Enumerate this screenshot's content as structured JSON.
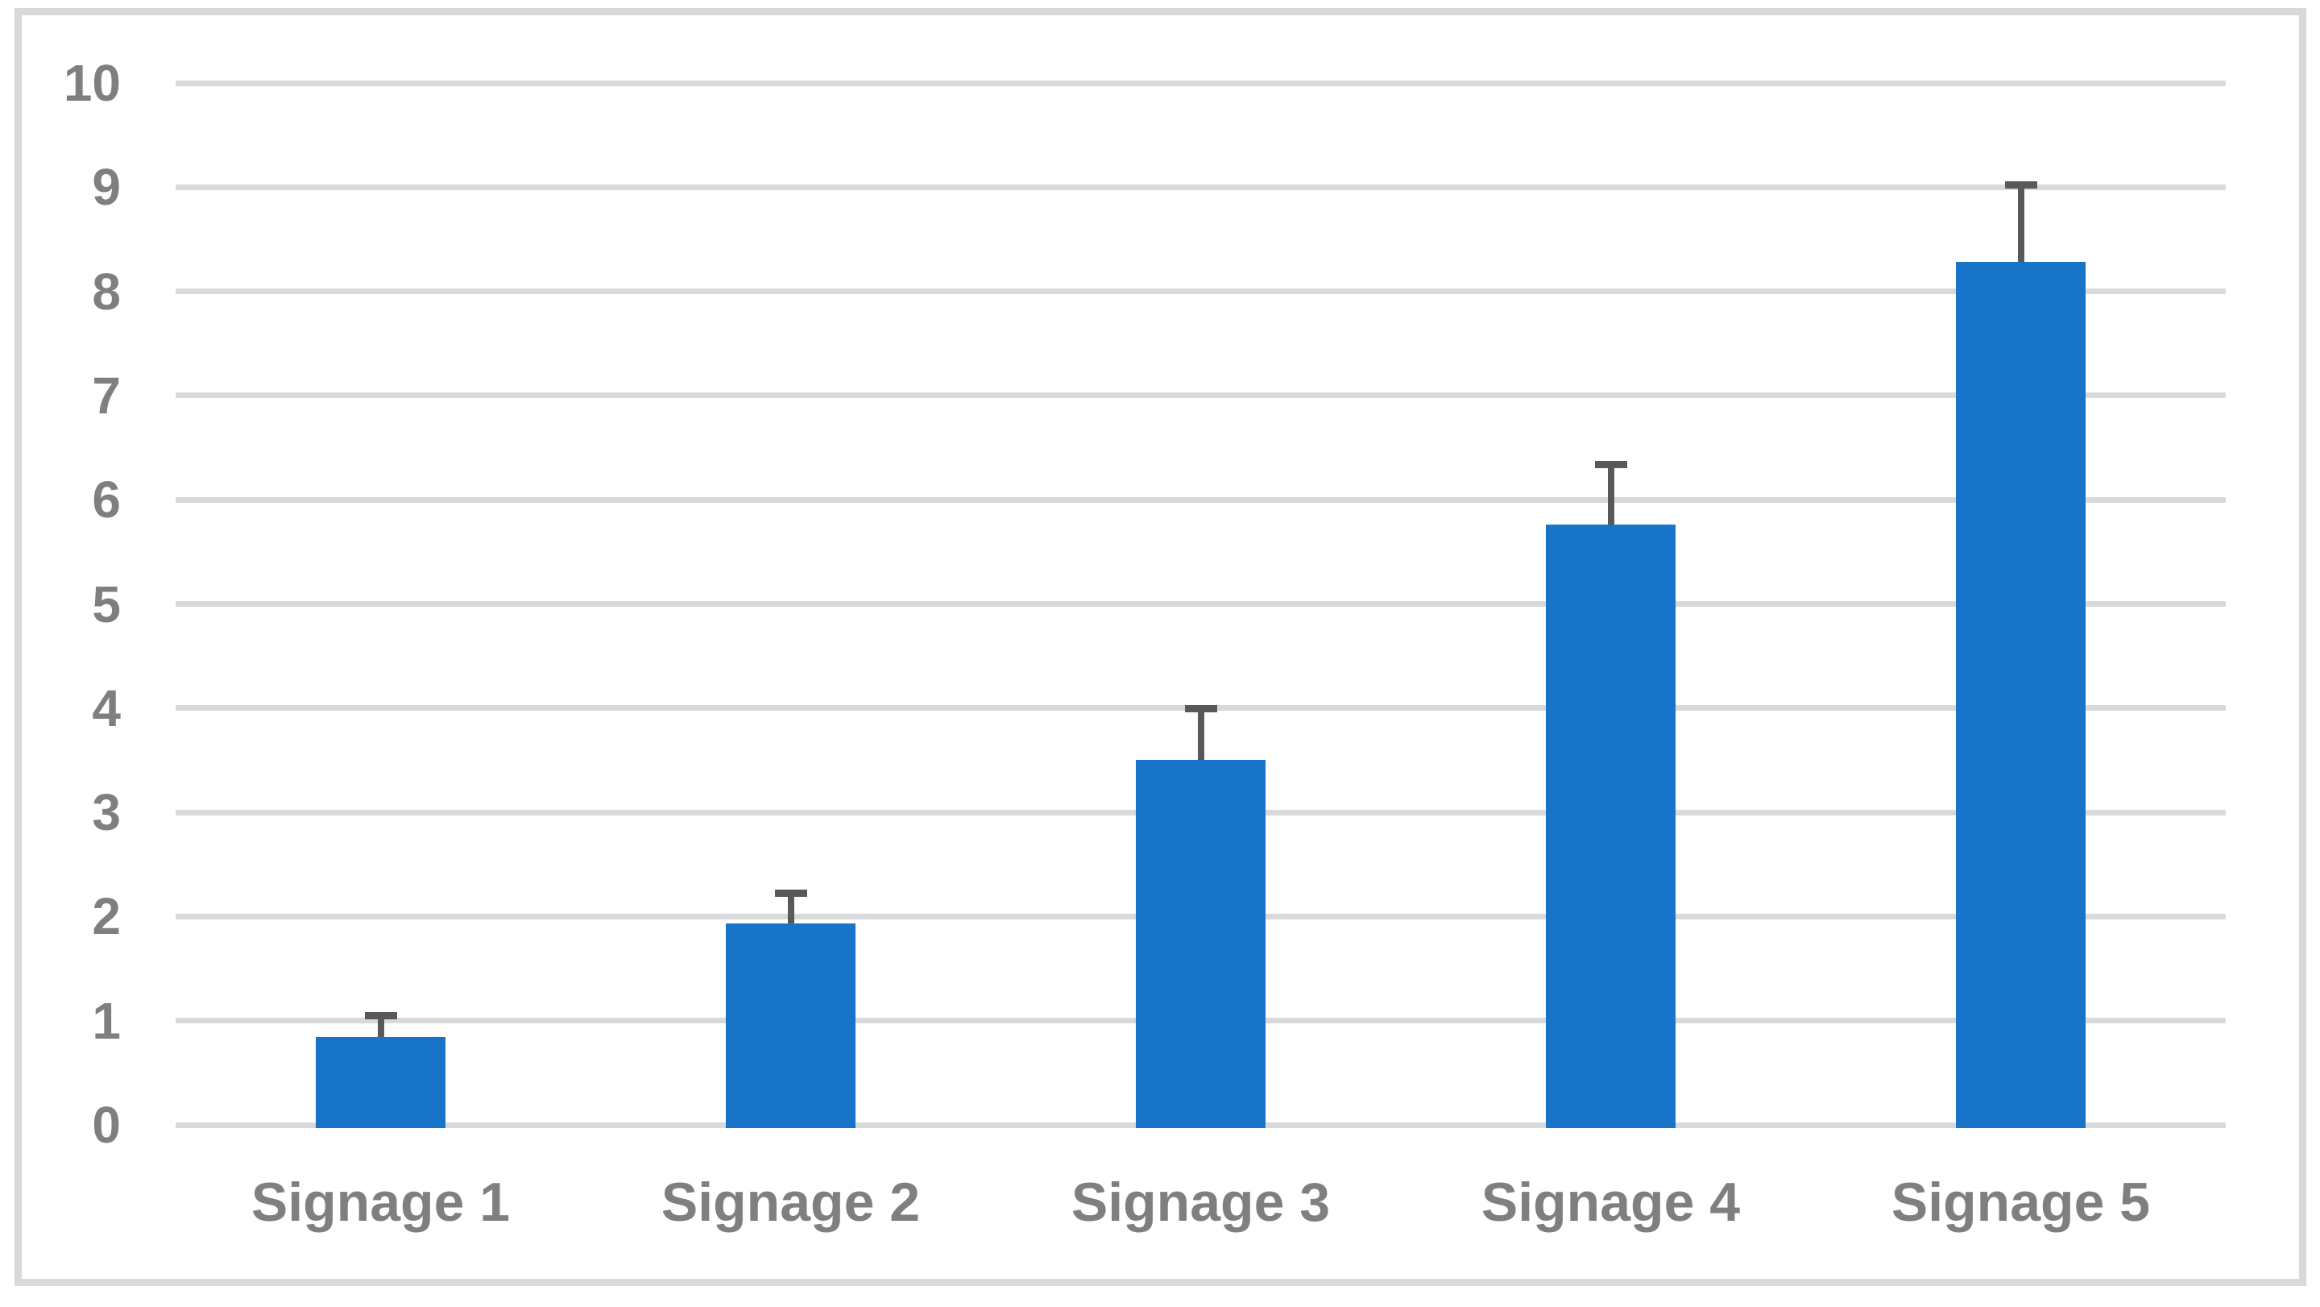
{
  "chart_data": {
    "type": "bar",
    "title": "",
    "categories": [
      "Signage 1",
      "Signage 2",
      "Signage 3",
      "Signage 4",
      "Signage 5"
    ],
    "values": [
      0.84,
      1.93,
      3.5,
      5.76,
      8.28
    ],
    "error_upper": [
      0.24,
      0.33,
      0.53,
      0.61,
      0.78
    ],
    "ylim": [
      0,
      10
    ],
    "yticks": [
      0,
      1,
      2,
      3,
      4,
      5,
      6,
      7,
      8,
      9,
      10
    ],
    "grid": true,
    "legend": false,
    "colors": {
      "bar": "#1874C8",
      "error_bar": "#595959",
      "gridline": "#D9D9D9",
      "tick_label": "#7F7F7F",
      "frame_border": "#D9D9D9",
      "background": "#FFFFFF"
    }
  }
}
